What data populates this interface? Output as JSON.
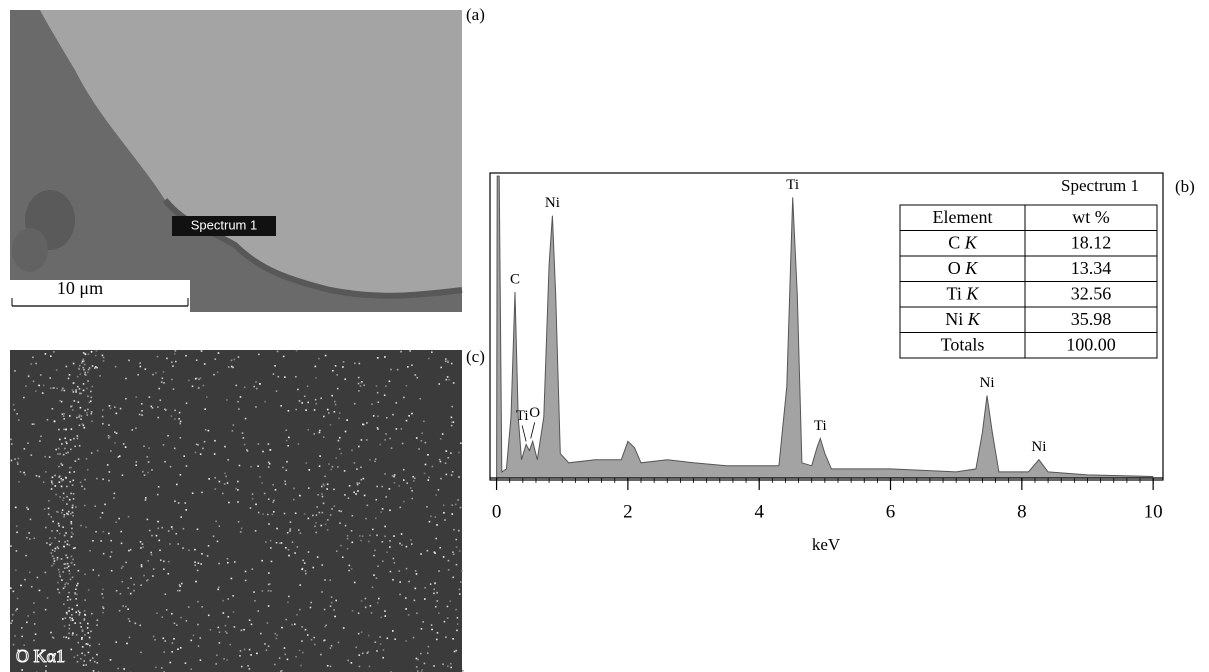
{
  "panels": {
    "a": "(a)",
    "b": "(b)",
    "c": "(c)"
  },
  "sem": {
    "spot_label": "Spectrum 1",
    "scale_label": "10 μm"
  },
  "map": {
    "label": "O Kα1"
  },
  "chart_data": {
    "type": "area",
    "spectrum_title": "Spectrum 1",
    "x_label": "keV",
    "xlim": [
      -0.1,
      10.15
    ],
    "ylim": [
      0,
      100
    ],
    "xticks": [
      0,
      2,
      4,
      6,
      8,
      10
    ],
    "color": "#a3a3a3",
    "x": [
      0,
      0.01,
      0.04,
      0.08,
      0.15,
      0.22,
      0.28,
      0.33,
      0.38,
      0.45,
      0.5,
      0.55,
      0.62,
      0.72,
      0.8,
      0.85,
      0.9,
      0.97,
      1.1,
      1.5,
      1.9,
      2.0,
      2.1,
      2.2,
      2.6,
      3.0,
      3.5,
      4.0,
      4.3,
      4.42,
      4.51,
      4.58,
      4.65,
      4.8,
      4.88,
      4.93,
      5.0,
      5.1,
      6.0,
      7.0,
      7.3,
      7.4,
      7.47,
      7.55,
      7.65,
      8.1,
      8.26,
      8.4,
      9.0,
      10.0
    ],
    "values": [
      0,
      99,
      99,
      2,
      3,
      20,
      61,
      20,
      6,
      11,
      9,
      12,
      6,
      20,
      70,
      86,
      60,
      8,
      5,
      6,
      6,
      12,
      10,
      5,
      6,
      5,
      4,
      4,
      4,
      30,
      92,
      60,
      5,
      4,
      10,
      13,
      8,
      3,
      3,
      2,
      3,
      15,
      27,
      15,
      2,
      2,
      6,
      2,
      1,
      0.5
    ],
    "annotations": [
      {
        "text": "C",
        "x": 0.28,
        "y": 61
      },
      {
        "text": "Ti",
        "x": 0.45,
        "y": 11
      },
      {
        "text": "O",
        "x": 0.52,
        "y": 12
      },
      {
        "text": "Ni",
        "x": 0.85,
        "y": 86
      },
      {
        "text": "Ti",
        "x": 4.51,
        "y": 92
      },
      {
        "text": "Ti",
        "x": 4.93,
        "y": 13
      },
      {
        "text": "Ni",
        "x": 7.47,
        "y": 27
      },
      {
        "text": "Ni",
        "x": 8.26,
        "y": 6
      }
    ]
  },
  "table": {
    "header": [
      "Element",
      "wt %"
    ],
    "rows": [
      {
        "element": "C",
        "line": "K",
        "wt": "18.12"
      },
      {
        "element": "O",
        "line": "K",
        "wt": "13.34"
      },
      {
        "element": "Ti",
        "line": "K",
        "wt": "32.56"
      },
      {
        "element": "Ni",
        "line": "K",
        "wt": "35.98"
      },
      {
        "element": "Totals",
        "wt": "100.00"
      }
    ]
  }
}
